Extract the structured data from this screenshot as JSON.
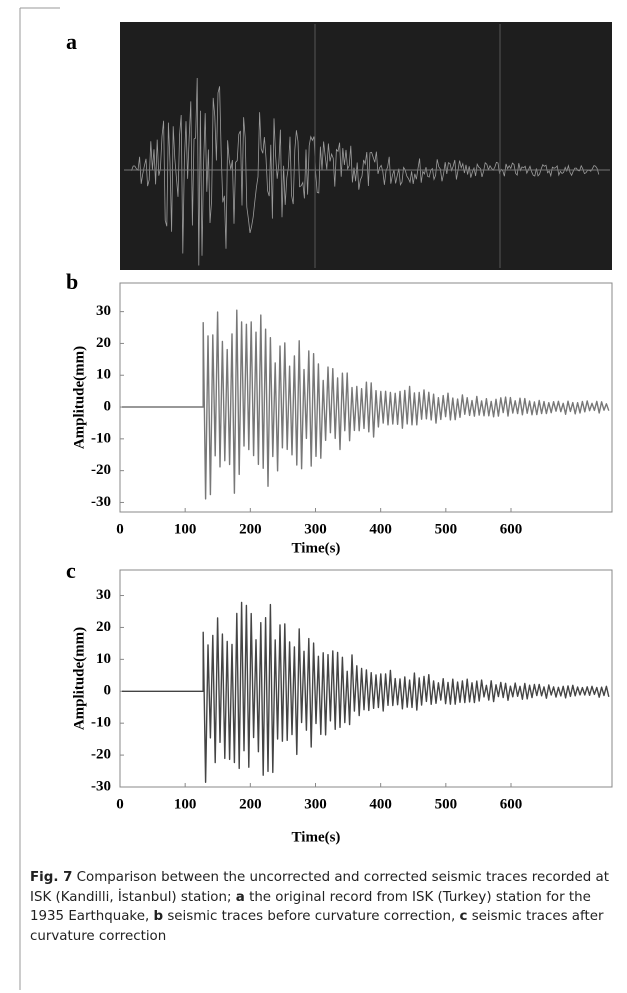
{
  "panel_labels": [
    "a",
    "b",
    "c"
  ],
  "chart_data": [
    {
      "type": "line",
      "y_label": "Amplitude(mm)",
      "x_label": "Time(s)",
      "xlim": [
        0,
        755
      ],
      "ylim": [
        -33,
        39
      ],
      "xticks": [
        0,
        100,
        200,
        300,
        400,
        500,
        600
      ],
      "yticks": [
        30,
        20,
        10,
        0,
        -10,
        -20,
        -30
      ]
    },
    {
      "type": "line",
      "y_label": "Amplitude(mm)",
      "x_label": "Time(s)",
      "xlim": [
        0,
        755
      ],
      "ylim": [
        -30,
        38
      ],
      "xticks": [
        0,
        100,
        200,
        300,
        400,
        500,
        600
      ],
      "yticks": [
        30,
        20,
        10,
        0,
        -10,
        -20,
        -30
      ]
    }
  ],
  "caption": {
    "label": "Fig. 7",
    "segments": [
      {
        "text": " Comparison between the uncorrected and corrected seismic traces recorded at ISK (Kandilli, İstanbul) station; "
      },
      {
        "text": "a",
        "bold": true
      },
      {
        "text": " the original record from ISK (Turkey) station for the 1935 Earthquake, "
      },
      {
        "text": "b",
        "bold": true
      },
      {
        "text": " seismic traces before curvature correction, "
      },
      {
        "text": "c",
        "bold": true
      },
      {
        "text": " seismic traces after curvature correction"
      }
    ]
  }
}
